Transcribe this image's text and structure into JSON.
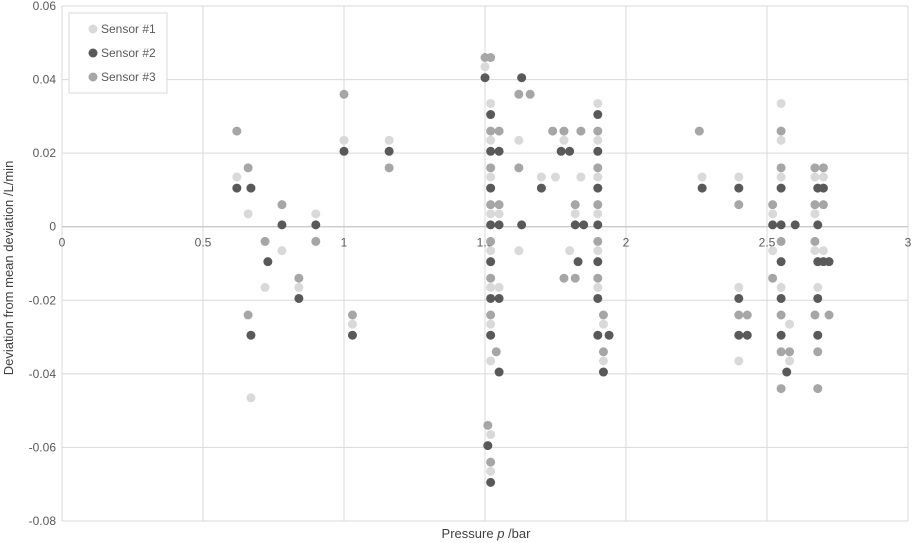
{
  "chart_data": {
    "type": "scatter",
    "title": "",
    "xlabel": "Pressure p /bar",
    "xlabel_parts": {
      "pre": "Pressure ",
      "italic": "p",
      "post": " /bar"
    },
    "ylabel": "Deviation from mean deviation /L/min",
    "xlim": [
      0,
      3
    ],
    "ylim": [
      -0.08,
      0.06
    ],
    "x_ticks": [
      0,
      0.5,
      1,
      1.5,
      2,
      2.5,
      3
    ],
    "x_tick_labels": [
      "0",
      "0.5",
      "1",
      "1.5",
      "2",
      "2.5",
      "3"
    ],
    "y_ticks": [
      0.06,
      0.04,
      0.02,
      0,
      -0.02,
      -0.04,
      -0.06,
      -0.08
    ],
    "y_tick_labels": [
      "0.06",
      "0.04",
      "0.02",
      "0",
      "-0.02",
      "-0.04",
      "-0.06",
      "-0.08"
    ],
    "grid": true,
    "legend_position": "top-left",
    "series": [
      {
        "name": "Sensor #1",
        "color": "#d9d9d9",
        "points": [
          [
            0.62,
            0.0135
          ],
          [
            0.66,
            0.0035
          ],
          [
            0.67,
            -0.0465
          ],
          [
            0.78,
            -0.0065
          ],
          [
            0.84,
            -0.0165
          ],
          [
            0.72,
            -0.0165
          ],
          [
            0.9,
            0.0035
          ],
          [
            1.0,
            0.0235
          ],
          [
            1.03,
            -0.0265
          ],
          [
            1.16,
            0.0235
          ],
          [
            1.5,
            0.0435
          ],
          [
            1.52,
            0.0335
          ],
          [
            1.52,
            0.0235
          ],
          [
            1.52,
            0.0135
          ],
          [
            1.52,
            0.0035
          ],
          [
            1.52,
            -0.0065
          ],
          [
            1.52,
            -0.0165
          ],
          [
            1.52,
            -0.0265
          ],
          [
            1.52,
            -0.0365
          ],
          [
            1.52,
            -0.0565
          ],
          [
            1.52,
            -0.0665
          ],
          [
            1.55,
            0.0035
          ],
          [
            1.55,
            -0.0165
          ],
          [
            1.62,
            0.0235
          ],
          [
            1.62,
            -0.0065
          ],
          [
            1.7,
            0.0135
          ],
          [
            1.75,
            0.0135
          ],
          [
            1.78,
            0.0235
          ],
          [
            1.8,
            -0.0065
          ],
          [
            1.82,
            0.0035
          ],
          [
            1.84,
            0.0135
          ],
          [
            1.9,
            0.0335
          ],
          [
            1.9,
            0.0235
          ],
          [
            1.9,
            0.0135
          ],
          [
            1.9,
            0.0035
          ],
          [
            1.9,
            -0.0065
          ],
          [
            1.9,
            -0.0165
          ],
          [
            1.92,
            -0.0265
          ],
          [
            1.92,
            -0.0365
          ],
          [
            2.27,
            0.0135
          ],
          [
            2.4,
            0.0135
          ],
          [
            2.4,
            -0.0165
          ],
          [
            2.4,
            -0.0365
          ],
          [
            2.52,
            0.0035
          ],
          [
            2.52,
            -0.0065
          ],
          [
            2.55,
            0.0335
          ],
          [
            2.55,
            0.0235
          ],
          [
            2.55,
            0.0135
          ],
          [
            2.55,
            -0.0165
          ],
          [
            2.58,
            -0.0265
          ],
          [
            2.58,
            -0.0365
          ],
          [
            2.67,
            0.0135
          ],
          [
            2.67,
            0.0035
          ],
          [
            2.67,
            -0.0065
          ],
          [
            2.68,
            -0.0165
          ],
          [
            2.7,
            0.0135
          ],
          [
            2.7,
            -0.0065
          ]
        ]
      },
      {
        "name": "Sensor #2",
        "color": "#595959",
        "points": [
          [
            0.62,
            0.0105
          ],
          [
            0.67,
            0.0105
          ],
          [
            0.67,
            -0.0295
          ],
          [
            0.73,
            -0.0095
          ],
          [
            0.78,
            0.0005
          ],
          [
            0.84,
            -0.0195
          ],
          [
            0.9,
            0.0005
          ],
          [
            1.0,
            0.0205
          ],
          [
            1.03,
            -0.0295
          ],
          [
            1.16,
            0.0205
          ],
          [
            1.5,
            0.0405
          ],
          [
            1.52,
            0.0305
          ],
          [
            1.52,
            0.0205
          ],
          [
            1.52,
            0.0105
          ],
          [
            1.52,
            0.0005
          ],
          [
            1.52,
            -0.0095
          ],
          [
            1.52,
            -0.0195
          ],
          [
            1.52,
            -0.0295
          ],
          [
            1.51,
            -0.0595
          ],
          [
            1.52,
            -0.0695
          ],
          [
            1.55,
            0.0205
          ],
          [
            1.55,
            0.0005
          ],
          [
            1.55,
            -0.0195
          ],
          [
            1.55,
            -0.0395
          ],
          [
            1.63,
            0.0405
          ],
          [
            1.63,
            0.0005
          ],
          [
            1.7,
            0.0105
          ],
          [
            1.77,
            0.0205
          ],
          [
            1.8,
            0.0205
          ],
          [
            1.82,
            0.0005
          ],
          [
            1.85,
            0.0005
          ],
          [
            1.83,
            -0.0095
          ],
          [
            1.9,
            0.0305
          ],
          [
            1.9,
            0.0205
          ],
          [
            1.9,
            0.0105
          ],
          [
            1.9,
            0.0005
          ],
          [
            1.9,
            -0.0095
          ],
          [
            1.9,
            -0.0195
          ],
          [
            1.9,
            -0.0295
          ],
          [
            1.92,
            -0.0395
          ],
          [
            1.94,
            -0.0295
          ],
          [
            2.27,
            0.0105
          ],
          [
            2.4,
            0.0105
          ],
          [
            2.4,
            -0.0195
          ],
          [
            2.4,
            -0.0295
          ],
          [
            2.43,
            -0.0295
          ],
          [
            2.52,
            0.0005
          ],
          [
            2.55,
            0.0105
          ],
          [
            2.55,
            0.0005
          ],
          [
            2.55,
            -0.0095
          ],
          [
            2.55,
            -0.0195
          ],
          [
            2.55,
            -0.0295
          ],
          [
            2.57,
            -0.0395
          ],
          [
            2.6,
            0.0005
          ],
          [
            2.68,
            0.0105
          ],
          [
            2.68,
            0.0005
          ],
          [
            2.68,
            -0.0095
          ],
          [
            2.68,
            -0.0195
          ],
          [
            2.68,
            -0.0295
          ],
          [
            2.7,
            0.0105
          ],
          [
            2.7,
            -0.0095
          ],
          [
            2.72,
            -0.0095
          ]
        ]
      },
      {
        "name": "Sensor #3",
        "color": "#a6a6a6",
        "points": [
          [
            0.62,
            0.026
          ],
          [
            0.66,
            0.016
          ],
          [
            0.66,
            -0.024
          ],
          [
            0.72,
            -0.004
          ],
          [
            0.78,
            0.006
          ],
          [
            0.84,
            -0.014
          ],
          [
            0.9,
            -0.004
          ],
          [
            1.0,
            0.036
          ],
          [
            1.03,
            -0.024
          ],
          [
            1.16,
            0.016
          ],
          [
            1.5,
            0.046
          ],
          [
            1.52,
            0.046
          ],
          [
            1.52,
            0.026
          ],
          [
            1.52,
            0.016
          ],
          [
            1.52,
            0.006
          ],
          [
            1.52,
            -0.004
          ],
          [
            1.52,
            -0.014
          ],
          [
            1.52,
            -0.024
          ],
          [
            1.54,
            -0.034
          ],
          [
            1.51,
            -0.054
          ],
          [
            1.52,
            -0.064
          ],
          [
            1.55,
            0.026
          ],
          [
            1.55,
            0.006
          ],
          [
            1.62,
            0.036
          ],
          [
            1.62,
            0.016
          ],
          [
            1.66,
            0.036
          ],
          [
            1.74,
            0.026
          ],
          [
            1.78,
            0.026
          ],
          [
            1.78,
            -0.014
          ],
          [
            1.82,
            0.006
          ],
          [
            1.82,
            -0.014
          ],
          [
            1.84,
            0.026
          ],
          [
            1.9,
            0.026
          ],
          [
            1.9,
            0.016
          ],
          [
            1.9,
            0.006
          ],
          [
            1.9,
            -0.004
          ],
          [
            1.9,
            -0.014
          ],
          [
            1.92,
            -0.024
          ],
          [
            1.92,
            -0.034
          ],
          [
            2.26,
            0.026
          ],
          [
            2.4,
            0.006
          ],
          [
            2.4,
            -0.024
          ],
          [
            2.43,
            -0.024
          ],
          [
            2.52,
            0.006
          ],
          [
            2.52,
            -0.014
          ],
          [
            2.55,
            0.026
          ],
          [
            2.55,
            0.016
          ],
          [
            2.55,
            -0.004
          ],
          [
            2.55,
            -0.024
          ],
          [
            2.55,
            -0.034
          ],
          [
            2.55,
            -0.044
          ],
          [
            2.58,
            -0.034
          ],
          [
            2.67,
            0.016
          ],
          [
            2.67,
            0.006
          ],
          [
            2.67,
            -0.004
          ],
          [
            2.67,
            -0.024
          ],
          [
            2.68,
            -0.034
          ],
          [
            2.68,
            -0.044
          ],
          [
            2.7,
            0.016
          ],
          [
            2.7,
            0.006
          ],
          [
            2.72,
            -0.024
          ]
        ]
      }
    ]
  }
}
